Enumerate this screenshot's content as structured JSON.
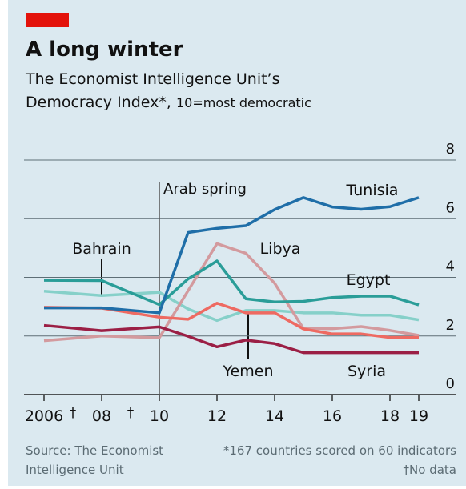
{
  "chart_data": {
    "type": "line",
    "title": "A long winter",
    "subtitle_line1": "The Economist Intelligence Unit’s",
    "subtitle_line2": "Democracy Index*,",
    "subtitle_line2b": "10=most democratic",
    "source_line1": "Source: The Economist",
    "source_line2": "Intelligence Unit",
    "footnote_line1": "*167 countries scored on 60 indicators",
    "footnote_line2": "†No data",
    "annotations": [
      {
        "x": 2010,
        "label": "Arab spring"
      }
    ],
    "no_data_marks": [
      {
        "x": 2007,
        "label": "†"
      },
      {
        "x": 2009,
        "label": "†"
      }
    ],
    "x": [
      2006,
      2008,
      2010,
      2011,
      2012,
      2013,
      2014,
      2015,
      2016,
      2017,
      2018,
      2019
    ],
    "xlim": [
      2006,
      2019
    ],
    "xticks": [
      {
        "value": 2006,
        "label": "2006"
      },
      {
        "value": 2008,
        "label": "08"
      },
      {
        "value": 2010,
        "label": "10"
      },
      {
        "value": 2012,
        "label": "12"
      },
      {
        "value": 2014,
        "label": "14"
      },
      {
        "value": 2016,
        "label": "16"
      },
      {
        "value": 2018,
        "label": "18"
      },
      {
        "value": 2019,
        "label": "19"
      }
    ],
    "ylim": [
      0,
      8
    ],
    "yticks": [
      0,
      2,
      4,
      6,
      8
    ],
    "grid": true,
    "series": [
      {
        "name": "Bahrain",
        "color": "#86d0c9",
        "values": [
          3.53,
          3.38,
          3.49,
          2.92,
          2.53,
          2.87,
          2.87,
          2.79,
          2.79,
          2.71,
          2.71,
          2.55
        ]
      },
      {
        "name": "Libya",
        "color": "#d39a9e",
        "values": [
          1.84,
          2.0,
          1.94,
          3.55,
          5.15,
          4.82,
          3.8,
          2.25,
          2.25,
          2.32,
          2.19,
          2.02
        ]
      },
      {
        "name": "Syria",
        "color": "#9b1f45",
        "values": [
          2.36,
          2.18,
          2.31,
          1.99,
          1.63,
          1.86,
          1.74,
          1.43,
          1.43,
          1.43,
          1.43,
          1.43
        ]
      },
      {
        "name": "Yemen",
        "color": "#ee6a62",
        "values": [
          2.98,
          2.95,
          2.64,
          2.57,
          3.12,
          2.79,
          2.79,
          2.24,
          2.07,
          2.07,
          1.95,
          1.95
        ]
      },
      {
        "name": "Egypt",
        "color": "#2a9d98",
        "values": [
          3.9,
          3.89,
          3.07,
          3.95,
          4.56,
          3.27,
          3.16,
          3.18,
          3.31,
          3.36,
          3.36,
          3.06
        ]
      },
      {
        "name": "Tunisia",
        "color": "#1f6ea8",
        "values": [
          2.96,
          2.96,
          2.79,
          5.53,
          5.67,
          5.76,
          6.31,
          6.72,
          6.4,
          6.32,
          6.41,
          6.72
        ]
      }
    ]
  }
}
